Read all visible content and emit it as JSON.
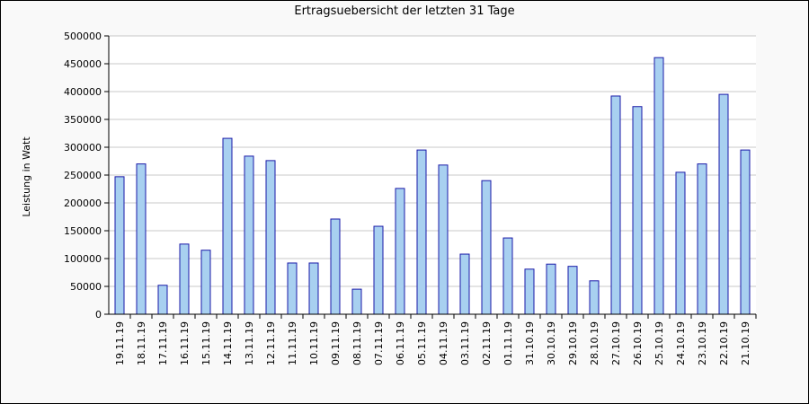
{
  "chart_data": {
    "type": "bar",
    "title": "Ertragsuebersicht der letzten 31 Tage",
    "xlabel": "",
    "ylabel": "Leistung in Watt",
    "ylim": [
      0,
      500000
    ],
    "yticks": [
      "0",
      "50000",
      "100000",
      "150000",
      "200000",
      "250000",
      "300000",
      "350000",
      "400000",
      "450000",
      "500000"
    ],
    "grid": true,
    "categories": [
      "19.11.19",
      "18.11.19",
      "17.11.19",
      "16.11.19",
      "15.11.19",
      "14.11.19",
      "13.11.19",
      "12.11.19",
      "11.11.19",
      "10.11.19",
      "09.11.19",
      "08.11.19",
      "07.11.19",
      "06.11.19",
      "05.11.19",
      "04.11.19",
      "03.11.19",
      "02.11.19",
      "01.11.19",
      "31.10.19",
      "30.10.19",
      "29.10.19",
      "28.10.19",
      "27.10.19",
      "26.10.19",
      "25.10.19",
      "24.10.19",
      "23.10.19",
      "22.10.19",
      "21.10.19"
    ],
    "values": [
      247000,
      270000,
      52000,
      126000,
      115000,
      316000,
      284000,
      276000,
      92000,
      92000,
      171000,
      45000,
      158000,
      226000,
      295000,
      268000,
      108000,
      240000,
      137000,
      81000,
      90000,
      86000,
      60000,
      392000,
      373000,
      461000,
      255000,
      270000,
      395000,
      295000
    ],
    "colors": {
      "bar_fill": "#a8d0f0",
      "bar_stroke": "#1a1aa8",
      "grid": "#c8c8c8",
      "background": "#f9f9f9",
      "plot_background": "#ffffff"
    }
  }
}
